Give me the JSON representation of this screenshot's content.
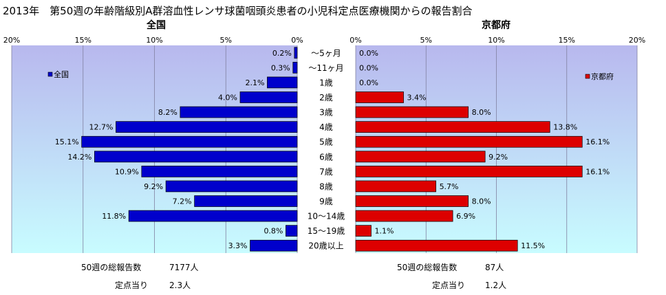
{
  "chart_data": {
    "type": "bar",
    "orientation": "horizontal",
    "layout": "butterfly",
    "title": "2013年　第50週の年齢階級別A群溶血性レンサ球菌咽頭炎患者の小児科定点医療機関からの報告割合",
    "categories": [
      "～5ヶ月",
      "～11ヶ月",
      "1歳",
      "2歳",
      "3歳",
      "4歳",
      "5歳",
      "6歳",
      "7歳",
      "8歳",
      "9歳",
      "10～14歳",
      "15～19歳",
      "20歳以上"
    ],
    "xlim": [
      0,
      20
    ],
    "xticks": [
      "0%",
      "5%",
      "10%",
      "15%",
      "20%"
    ],
    "grid": true,
    "series": [
      {
        "name": "全国",
        "panel_title": "全国",
        "side": "left",
        "color": "#0000cc",
        "legend_position": "top-left",
        "values": [
          0.2,
          0.3,
          2.1,
          4.0,
          8.2,
          12.7,
          15.1,
          14.2,
          10.9,
          9.2,
          7.2,
          11.8,
          0.8,
          3.3
        ],
        "labels": [
          "0.2%",
          "0.3%",
          "2.1%",
          "4.0%",
          "8.2%",
          "12.7%",
          "15.1%",
          "14.2%",
          "10.9%",
          "9.2%",
          "7.2%",
          "11.8%",
          "0.8%",
          "3.3%"
        ]
      },
      {
        "name": "京都府",
        "panel_title": "京都府",
        "side": "right",
        "color": "#dd0000",
        "legend_position": "top-right",
        "values": [
          0.0,
          0.0,
          0.0,
          3.4,
          8.0,
          13.8,
          16.1,
          9.2,
          16.1,
          5.7,
          8.0,
          6.9,
          1.1,
          11.5
        ],
        "labels": [
          "0.0%",
          "0.0%",
          "0.0%",
          "3.4%",
          "8.0%",
          "13.8%",
          "16.1%",
          "9.2%",
          "16.1%",
          "5.7%",
          "8.0%",
          "6.9%",
          "1.1%",
          "11.5%"
        ]
      }
    ],
    "footnotes": {
      "left": {
        "total_label": "50週の総報告数",
        "total_value": "7177人",
        "per_label": "定点当り",
        "per_value": "2.3人"
      },
      "right": {
        "total_label": "50週の総報告数",
        "total_value": "87人",
        "per_label": "定点当り",
        "per_value": "1.2人"
      }
    }
  },
  "colors": {
    "plot_top": "#b8b8ee",
    "plot_bottom": "#c8fcff",
    "grid": "#8080a0",
    "bar_outline": "#000000"
  }
}
